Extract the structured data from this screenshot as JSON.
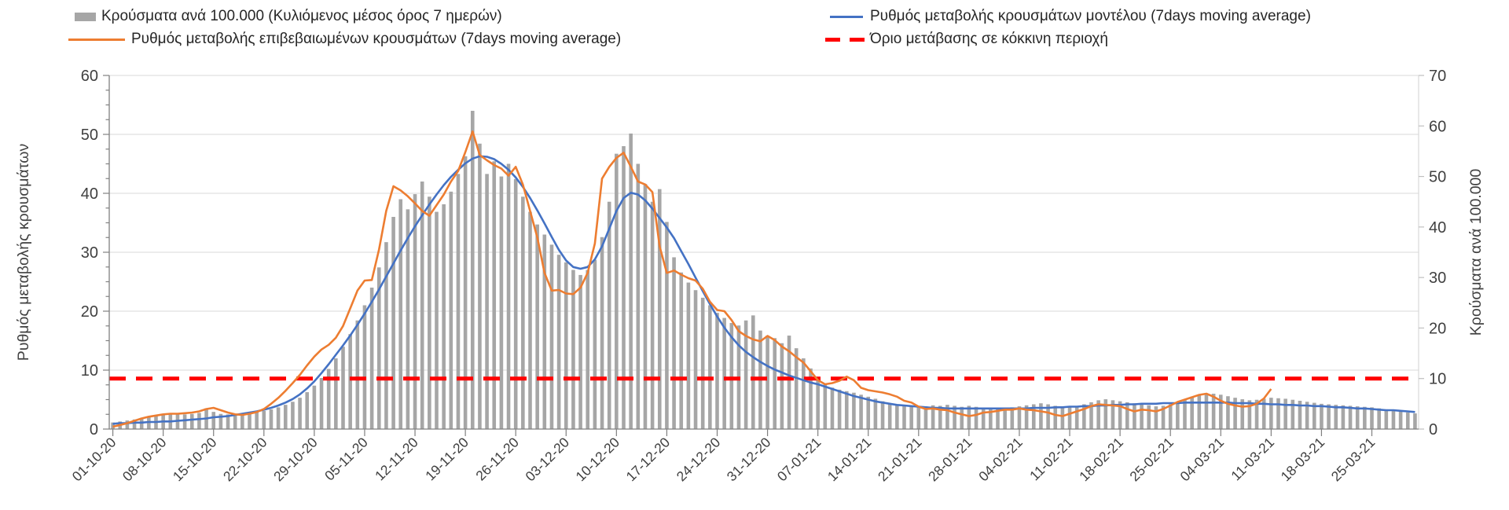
{
  "legend": {
    "items": [
      {
        "label": "Κρούσματα ανά 100.000 (Κυλιόμενος μέσος όρος 7 ημερών)",
        "swatch": "bar-swatch",
        "color": "#A6A6A6"
      },
      {
        "label": "Ρυθμός μεταβολής επιβεβαιωμένων κρουσμάτων (7days moving average)",
        "swatch": "line-swatch",
        "color": "#ED7D31"
      },
      {
        "label": "Ρυθμός μεταβολής κρουσμάτων μοντέλου (7days moving average)",
        "swatch": "line-swatch",
        "color": "#4472C4"
      },
      {
        "label": "Όριο μετάβασης σε κόκκινη περιοχή",
        "swatch": "dashed-swatch",
        "color": "#FF0000"
      }
    ]
  },
  "chart_data": {
    "type": "bar",
    "subtype": "combo-bar-line",
    "title": "",
    "grid": true,
    "legend_position": "top",
    "left_axis": {
      "title": "Ρυθμός μεταβολής κρουσμάτων",
      "min": 0,
      "max": 60,
      "tick_step": 10,
      "minor_tick_step": 2.5,
      "tick_labels": [
        "0",
        "10",
        "20",
        "30",
        "40",
        "50",
        "60"
      ]
    },
    "right_axis": {
      "title": "Κρούσματα ανά 100.000",
      "min": 0,
      "max": 70,
      "tick_step": 10,
      "tick_labels": [
        "0",
        "10",
        "20",
        "30",
        "40",
        "50",
        "60",
        "70"
      ]
    },
    "x_axis": {
      "tick_labels": [
        "01-10-20",
        "08-10-20",
        "15-10-20",
        "22-10-20",
        "29-10-20",
        "05-11-20",
        "12-11-20",
        "19-11-20",
        "26-11-20",
        "03-12-20",
        "10-12-20",
        "17-12-20",
        "24-12-20",
        "31-12-20",
        "07-01-21",
        "14-01-21",
        "21-01-21",
        "28-01-21",
        "04-02-21",
        "11-02-21",
        "18-02-21",
        "25-02-21",
        "04-03-21",
        "11-03-21",
        "18-03-21",
        "25-03-21"
      ],
      "days_between_ticks": 7,
      "n_days": 182
    },
    "threshold": {
      "label": "Όριο μετάβασης σε κόκκινη περιοχή",
      "value": 10,
      "axis": "right",
      "color": "#FF0000",
      "style": "dashed"
    },
    "colors": {
      "bars": "#A6A6A6",
      "confirmed_line": "#ED7D31",
      "model_line": "#4472C4",
      "threshold": "#FF0000",
      "grid": "#D9D9D9",
      "axis": "#808080",
      "text": "#404040"
    },
    "series": [
      {
        "name": "Κρούσματα ανά 100.000 (Κυλιόμενος μέσος όρος 7 ημερών)",
        "type": "bar",
        "axis": "right",
        "color": "#A6A6A6",
        "values": [
          1.3,
          1.5,
          1.7,
          1.9,
          2.2,
          2.5,
          2.8,
          3.0,
          3.1,
          3.0,
          2.9,
          3.0,
          3.2,
          4.1,
          3.4,
          3.0,
          2.9,
          3.0,
          3.1,
          3.2,
          3.4,
          3.6,
          3.9,
          4.3,
          4.8,
          5.4,
          6.2,
          7.3,
          8.6,
          10.1,
          11.9,
          14.0,
          16.3,
          18.8,
          21.5,
          24.5,
          28.0,
          32.0,
          37.0,
          42.0,
          45.5,
          43.5,
          46.5,
          49.0,
          46.0,
          43.0,
          44.5,
          47.0,
          50.5,
          54.0,
          63.0,
          56.5,
          50.5,
          53.0,
          50.0,
          52.5,
          49.5,
          46.0,
          43.0,
          40.5,
          38.5,
          36.5,
          34.5,
          33.0,
          31.5,
          30.5,
          31.5,
          33.5,
          38.0,
          45.0,
          54.5,
          56.0,
          58.5,
          52.5,
          48.5,
          45.0,
          47.5,
          41.0,
          34.0,
          31.0,
          29.0,
          27.5,
          26.0,
          24.5,
          23.0,
          22.0,
          21.0,
          20.5,
          21.5,
          22.5,
          19.5,
          18.5,
          18.0,
          17.0,
          18.5,
          16.0,
          14.0,
          12.0,
          10.2,
          8.8,
          8.2,
          7.8,
          7.5,
          7.2,
          6.8,
          6.4,
          6.0,
          5.5,
          5.1,
          4.8,
          4.6,
          4.5,
          4.4,
          4.5,
          4.7,
          4.6,
          4.8,
          4.6,
          4.4,
          4.6,
          4.4,
          4.2,
          4.0,
          3.9,
          4.1,
          4.3,
          4.5,
          4.7,
          4.9,
          5.1,
          4.9,
          4.6,
          4.4,
          4.3,
          4.5,
          4.9,
          5.3,
          5.7,
          5.9,
          5.7,
          5.5,
          5.3,
          5.1,
          4.9,
          4.7,
          4.5,
          4.6,
          4.9,
          5.4,
          5.9,
          6.4,
          6.7,
          6.9,
          7.0,
          6.8,
          6.5,
          6.2,
          5.9,
          5.7,
          5.8,
          6.0,
          6.2,
          6.1,
          6.0,
          5.8,
          5.6,
          5.4,
          5.2,
          5.0,
          4.9,
          4.8,
          4.7,
          4.6,
          4.5,
          4.4,
          4.3,
          4.1,
          3.9,
          3.7,
          3.5,
          3.3,
          3.1
        ]
      },
      {
        "name": "Ρυθμός μεταβολής επιβεβαιωμένων κρουσμάτων (7days moving average)",
        "type": "line",
        "axis": "left",
        "color": "#ED7D31",
        "values": [
          0.4,
          0.7,
          1.0,
          1.4,
          1.8,
          2.1,
          2.3,
          2.5,
          2.6,
          2.6,
          2.7,
          2.8,
          3.0,
          3.4,
          3.6,
          3.2,
          2.8,
          2.5,
          2.4,
          2.6,
          2.9,
          3.4,
          4.3,
          5.3,
          6.5,
          7.8,
          9.2,
          10.8,
          12.3,
          13.5,
          14.3,
          15.5,
          17.5,
          20.5,
          23.5,
          25.2,
          25.3,
          30.5,
          37.0,
          41.2,
          40.5,
          39.5,
          38.3,
          37.0,
          36.2,
          38.0,
          39.8,
          42.0,
          43.8,
          47.0,
          50.5,
          46.5,
          45.6,
          44.8,
          44.2,
          43.0,
          44.5,
          41.5,
          37.0,
          32.5,
          26.5,
          23.5,
          23.6,
          23.0,
          22.9,
          24.0,
          26.5,
          31.5,
          42.5,
          44.5,
          46.0,
          46.9,
          44.5,
          42.0,
          41.5,
          40.2,
          31.0,
          26.5,
          26.9,
          26.2,
          25.6,
          25.2,
          23.8,
          21.6,
          20.2,
          20.0,
          18.5,
          16.6,
          15.8,
          15.2,
          14.9,
          15.8,
          15.1,
          14.0,
          13.2,
          12.2,
          11.3,
          9.8,
          8.3,
          7.6,
          7.8,
          8.2,
          8.9,
          8.3,
          7.0,
          6.6,
          6.4,
          6.2,
          5.9,
          5.5,
          4.8,
          4.5,
          3.8,
          3.4,
          3.5,
          3.3,
          3.2,
          2.8,
          2.5,
          2.2,
          2.4,
          2.8,
          2.9,
          3.1,
          3.3,
          3.3,
          3.5,
          3.3,
          3.2,
          3.0,
          2.8,
          2.4,
          2.2,
          2.6,
          3.0,
          3.4,
          3.9,
          4.2,
          4.1,
          4.0,
          3.9,
          3.4,
          3.0,
          3.3,
          3.2,
          3.0,
          3.4,
          4.0,
          4.6,
          5.0,
          5.4,
          5.8,
          6.0,
          5.5,
          4.8,
          4.3,
          4.0,
          3.8,
          3.9,
          4.3,
          5.2,
          6.8,
          null,
          null,
          null,
          null,
          null,
          null,
          null,
          null,
          null,
          null,
          null,
          null,
          null,
          null,
          null,
          null,
          null,
          null,
          null,
          null
        ]
      },
      {
        "name": "Ρυθμός μεταβολής κρουσμάτων μοντέλου (7days moving average)",
        "type": "line",
        "axis": "left",
        "color": "#4472C4",
        "values": [
          0.9,
          1.0,
          1.0,
          1.1,
          1.1,
          1.2,
          1.2,
          1.3,
          1.3,
          1.4,
          1.5,
          1.6,
          1.7,
          1.8,
          2.0,
          2.1,
          2.2,
          2.4,
          2.6,
          2.8,
          3.0,
          3.3,
          3.6,
          4.0,
          4.5,
          5.1,
          5.9,
          6.9,
          8.1,
          9.5,
          11.0,
          12.6,
          14.2,
          15.9,
          17.7,
          19.6,
          21.6,
          23.7,
          25.9,
          28.1,
          30.3,
          32.4,
          34.4,
          36.3,
          38.1,
          39.8,
          41.4,
          42.8,
          44.0,
          45.1,
          45.9,
          46.3,
          46.2,
          45.8,
          45.0,
          44.0,
          42.7,
          41.1,
          39.2,
          37.1,
          34.9,
          32.6,
          30.4,
          28.6,
          27.5,
          27.2,
          27.5,
          28.8,
          31.0,
          34.0,
          37.0,
          39.2,
          40.1,
          39.8,
          38.8,
          37.4,
          35.8,
          34.2,
          32.4,
          30.2,
          28.0,
          25.7,
          23.4,
          21.2,
          19.1,
          17.2,
          15.6,
          14.2,
          13.1,
          12.2,
          11.4,
          10.7,
          10.1,
          9.6,
          9.1,
          8.7,
          8.3,
          7.9,
          7.6,
          7.2,
          6.8,
          6.4,
          6.0,
          5.6,
          5.3,
          5.0,
          4.7,
          4.5,
          4.3,
          4.1,
          4.0,
          3.9,
          3.8,
          3.7,
          3.6,
          3.6,
          3.5,
          3.5,
          3.5,
          3.5,
          3.5,
          3.5,
          3.5,
          3.5,
          3.5,
          3.5,
          3.5,
          3.5,
          3.6,
          3.6,
          3.6,
          3.7,
          3.7,
          3.8,
          3.8,
          3.9,
          3.9,
          4.0,
          4.0,
          4.1,
          4.1,
          4.2,
          4.2,
          4.3,
          4.3,
          4.3,
          4.4,
          4.4,
          4.4,
          4.5,
          4.5,
          4.5,
          4.5,
          4.5,
          4.5,
          4.5,
          4.4,
          4.4,
          4.4,
          4.3,
          4.3,
          4.2,
          4.2,
          4.1,
          4.1,
          4.0,
          4.0,
          3.9,
          3.9,
          3.8,
          3.7,
          3.7,
          3.6,
          3.5,
          3.5,
          3.4,
          3.3,
          3.2,
          3.2,
          3.1,
          3.0,
          2.9
        ]
      }
    ]
  }
}
